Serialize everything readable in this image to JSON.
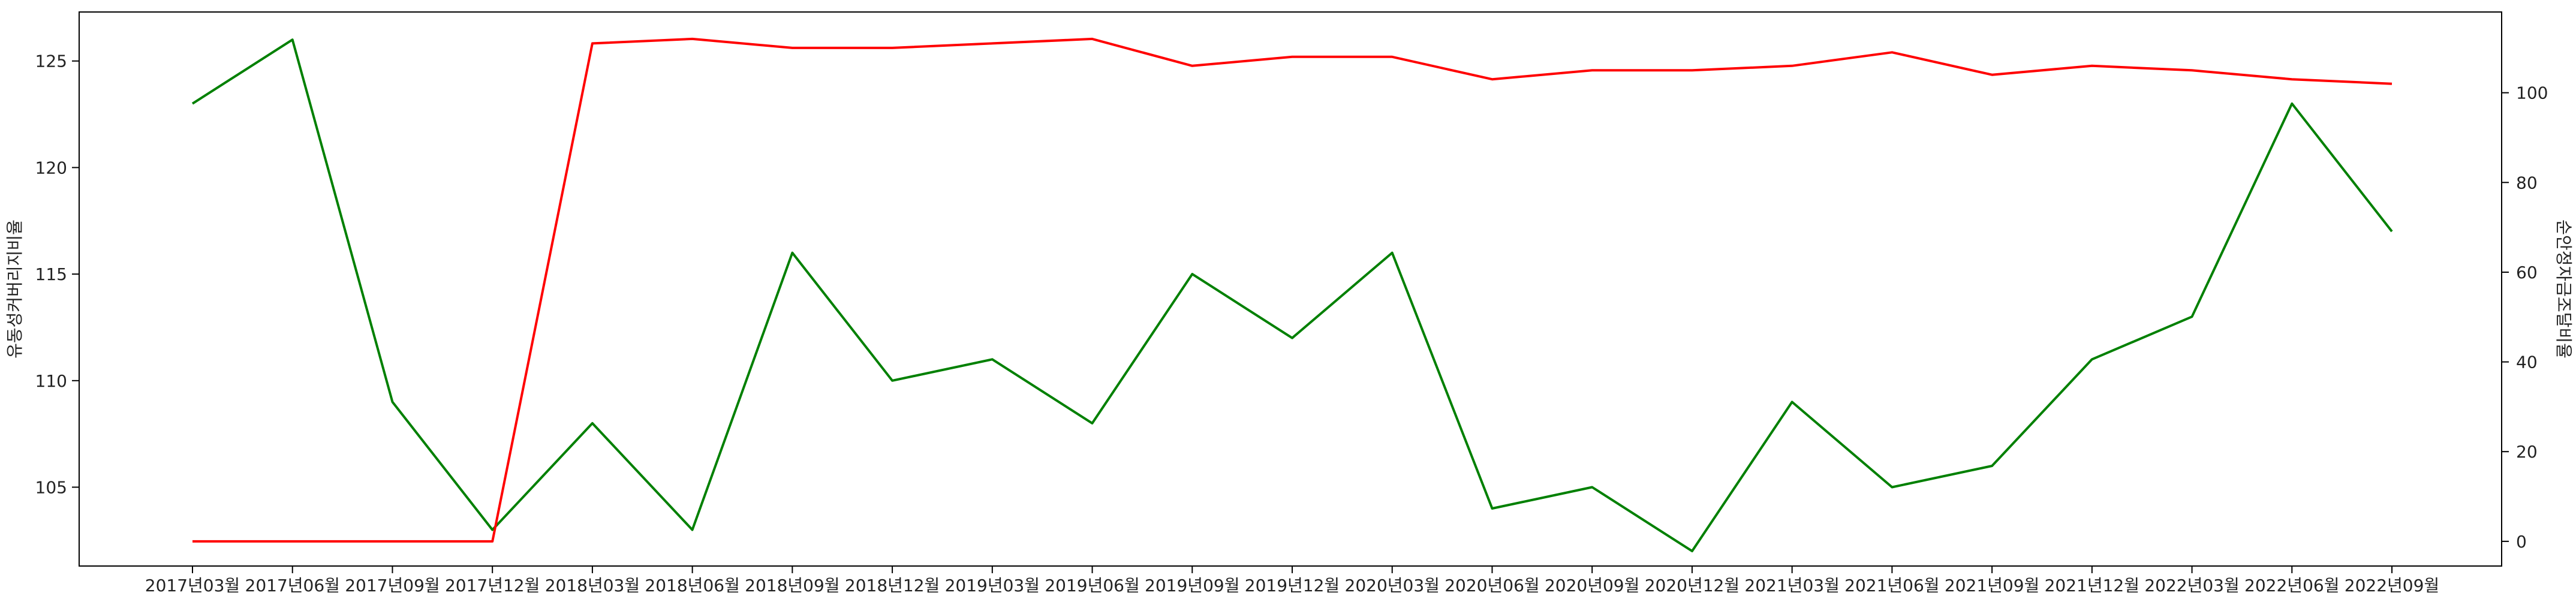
{
  "chart_data": {
    "type": "line",
    "x": [
      "2017년03월",
      "2017년06월",
      "2017년09월",
      "2017년12월",
      "2018년03월",
      "2018년06월",
      "2018년09월",
      "2018년12월",
      "2019년03월",
      "2019년06월",
      "2019년09월",
      "2019년12월",
      "2020년03월",
      "2020년06월",
      "2020년09월",
      "2020년12월",
      "2021년03월",
      "2021년06월",
      "2021년09월",
      "2021년12월",
      "2022년03월",
      "2022년06월",
      "2022년09월"
    ],
    "ylabel_left": "유동성커버리지비율",
    "ylabel_right": "순안정자금조달비율",
    "ylim_left": [
      101.3,
      127.3
    ],
    "ylim_right": [
      -5.5,
      118
    ],
    "yticks_left": [
      105,
      110,
      115,
      120,
      125
    ],
    "yticks_right": [
      0,
      20,
      40,
      60,
      80,
      100
    ],
    "grid": false,
    "series": [
      {
        "axis": "left",
        "color": "#008000",
        "values": [
          123,
          126,
          109,
          103,
          108,
          103,
          116,
          110,
          111,
          108,
          115,
          112,
          116,
          104,
          105,
          102,
          109,
          105,
          106,
          111,
          113,
          123,
          117
        ]
      },
      {
        "axis": "right",
        "color": "#ff0000",
        "values": [
          0,
          0,
          0,
          0,
          111,
          112,
          110,
          110,
          111,
          112,
          106,
          108,
          108,
          103,
          105,
          105,
          106,
          109,
          104,
          106,
          105,
          103,
          102
        ]
      }
    ]
  }
}
